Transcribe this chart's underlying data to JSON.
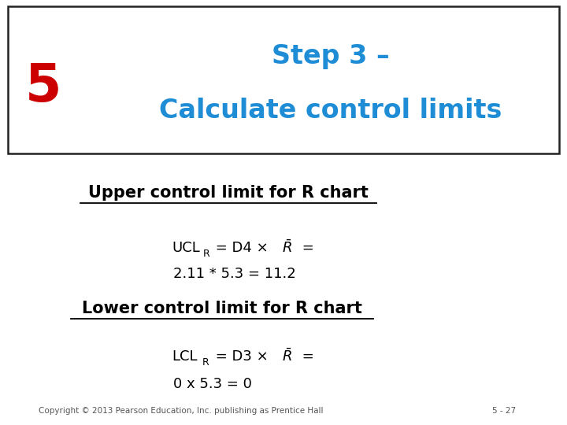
{
  "title_step": "Step 3 –",
  "title_main": "Calculate control limits",
  "step_number": "5",
  "step_color": "#cc0000",
  "title_color": "#1f8dd6",
  "header_box_edge_color": "#222222",
  "upper_heading": "Upper control limit for R chart",
  "upper_eq2": "2.11 * 5.3 = 11.2",
  "lower_heading": "Lower control limit for R chart",
  "lower_eq2": "0 x 5.3 = 0",
  "copyright": "Copyright © 2013 Pearson Education, Inc. publishing as Prentice Hall",
  "page_number": "5 - 27",
  "bg_color": "#ffffff",
  "text_color": "#000000",
  "footer_color": "#555555"
}
